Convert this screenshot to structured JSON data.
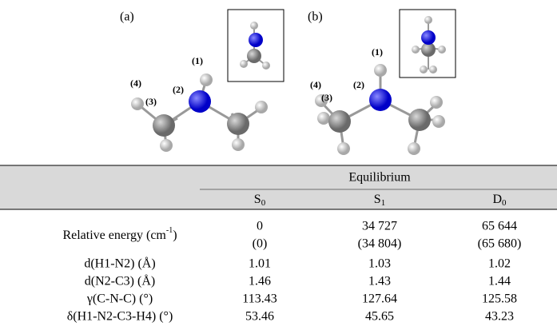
{
  "figure": {
    "panels": [
      {
        "label": "(a)",
        "atoms": [
          "(1)",
          "(2)",
          "(3)",
          "(4)"
        ]
      },
      {
        "label": "(b)",
        "atoms": [
          "(1)",
          "(2)",
          "(3)",
          "(4)"
        ]
      }
    ]
  },
  "table": {
    "group_header": "Equilibrium",
    "columns": [
      {
        "letter": "S",
        "sub": "0"
      },
      {
        "letter": "S",
        "sub": "1"
      },
      {
        "letter": "D",
        "sub": "0"
      }
    ],
    "energy_row": {
      "label": "Relative energy (cm",
      "label_sup": "-1",
      "label_end": ")",
      "values": [
        "0",
        "34 727",
        "65 644"
      ],
      "values2": [
        "(0)",
        "(34 804)",
        "(65 680)"
      ]
    },
    "rows": [
      [
        "d(H1-N2) (Å)",
        "1.01",
        "1.03",
        "1.02"
      ],
      [
        "d(N2-C3) (Å)",
        "1.46",
        "1.43",
        "1.44"
      ],
      [
        "γ(C-N-C) (°)",
        "113.43",
        "127.64",
        "125.58"
      ],
      [
        "δ(H1-N2-C3-H4) (°)",
        "53.46",
        "45.65",
        "43.23"
      ]
    ]
  }
}
